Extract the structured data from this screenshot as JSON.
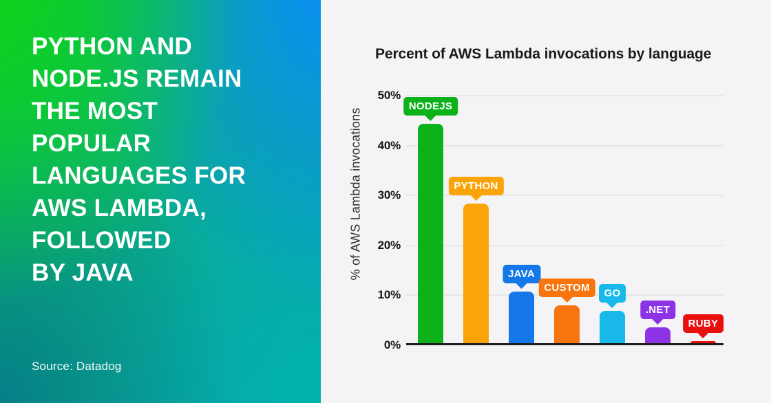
{
  "panel": {
    "headline": "PYTHON AND\nNODE.JS REMAIN\nTHE MOST\nPOPULAR\nLANGUAGES FOR\nAWS LAMBDA,\nFOLLOWED\nBY JAVA",
    "source": "Source: Datadog",
    "text_color": "#FFFFFF",
    "gradient_corners": {
      "top_left": "#0DD21D",
      "top_right": "#0A91F0",
      "bottom_left": "#057F88",
      "bottom_right": "#00B3A9"
    }
  },
  "chart_data": {
    "type": "bar",
    "title": "Percent of AWS Lambda invocations by language",
    "xlabel": "",
    "ylabel": "% of AWS Lambda invocations",
    "ylim": [
      0,
      50
    ],
    "yticks": [
      0,
      10,
      20,
      30,
      40,
      50
    ],
    "ytick_labels": [
      "0%",
      "10%",
      "20%",
      "30%",
      "40%",
      "50%"
    ],
    "grid": true,
    "legend": false,
    "categories": [
      "NODEJS",
      "PYTHON",
      "JAVA",
      "CUSTOM",
      "GO",
      ".NET",
      "RUBY"
    ],
    "values": [
      43.9,
      27.9,
      10.3,
      7.6,
      6.5,
      3.2,
      0.4
    ],
    "bar_colors": [
      "#0DB21B",
      "#FBA40A",
      "#1677E8",
      "#F7740E",
      "#18B9E8",
      "#8C33E6",
      "#E8100E"
    ],
    "label_style": "speech-bubble badge above each bar"
  },
  "colors": {
    "chart_background": "#F4F4F6",
    "title_text": "#1B1B1D",
    "tick_text": "#161618",
    "gridline": "#E7E7E9",
    "axis_line": "#1C1C1C"
  }
}
